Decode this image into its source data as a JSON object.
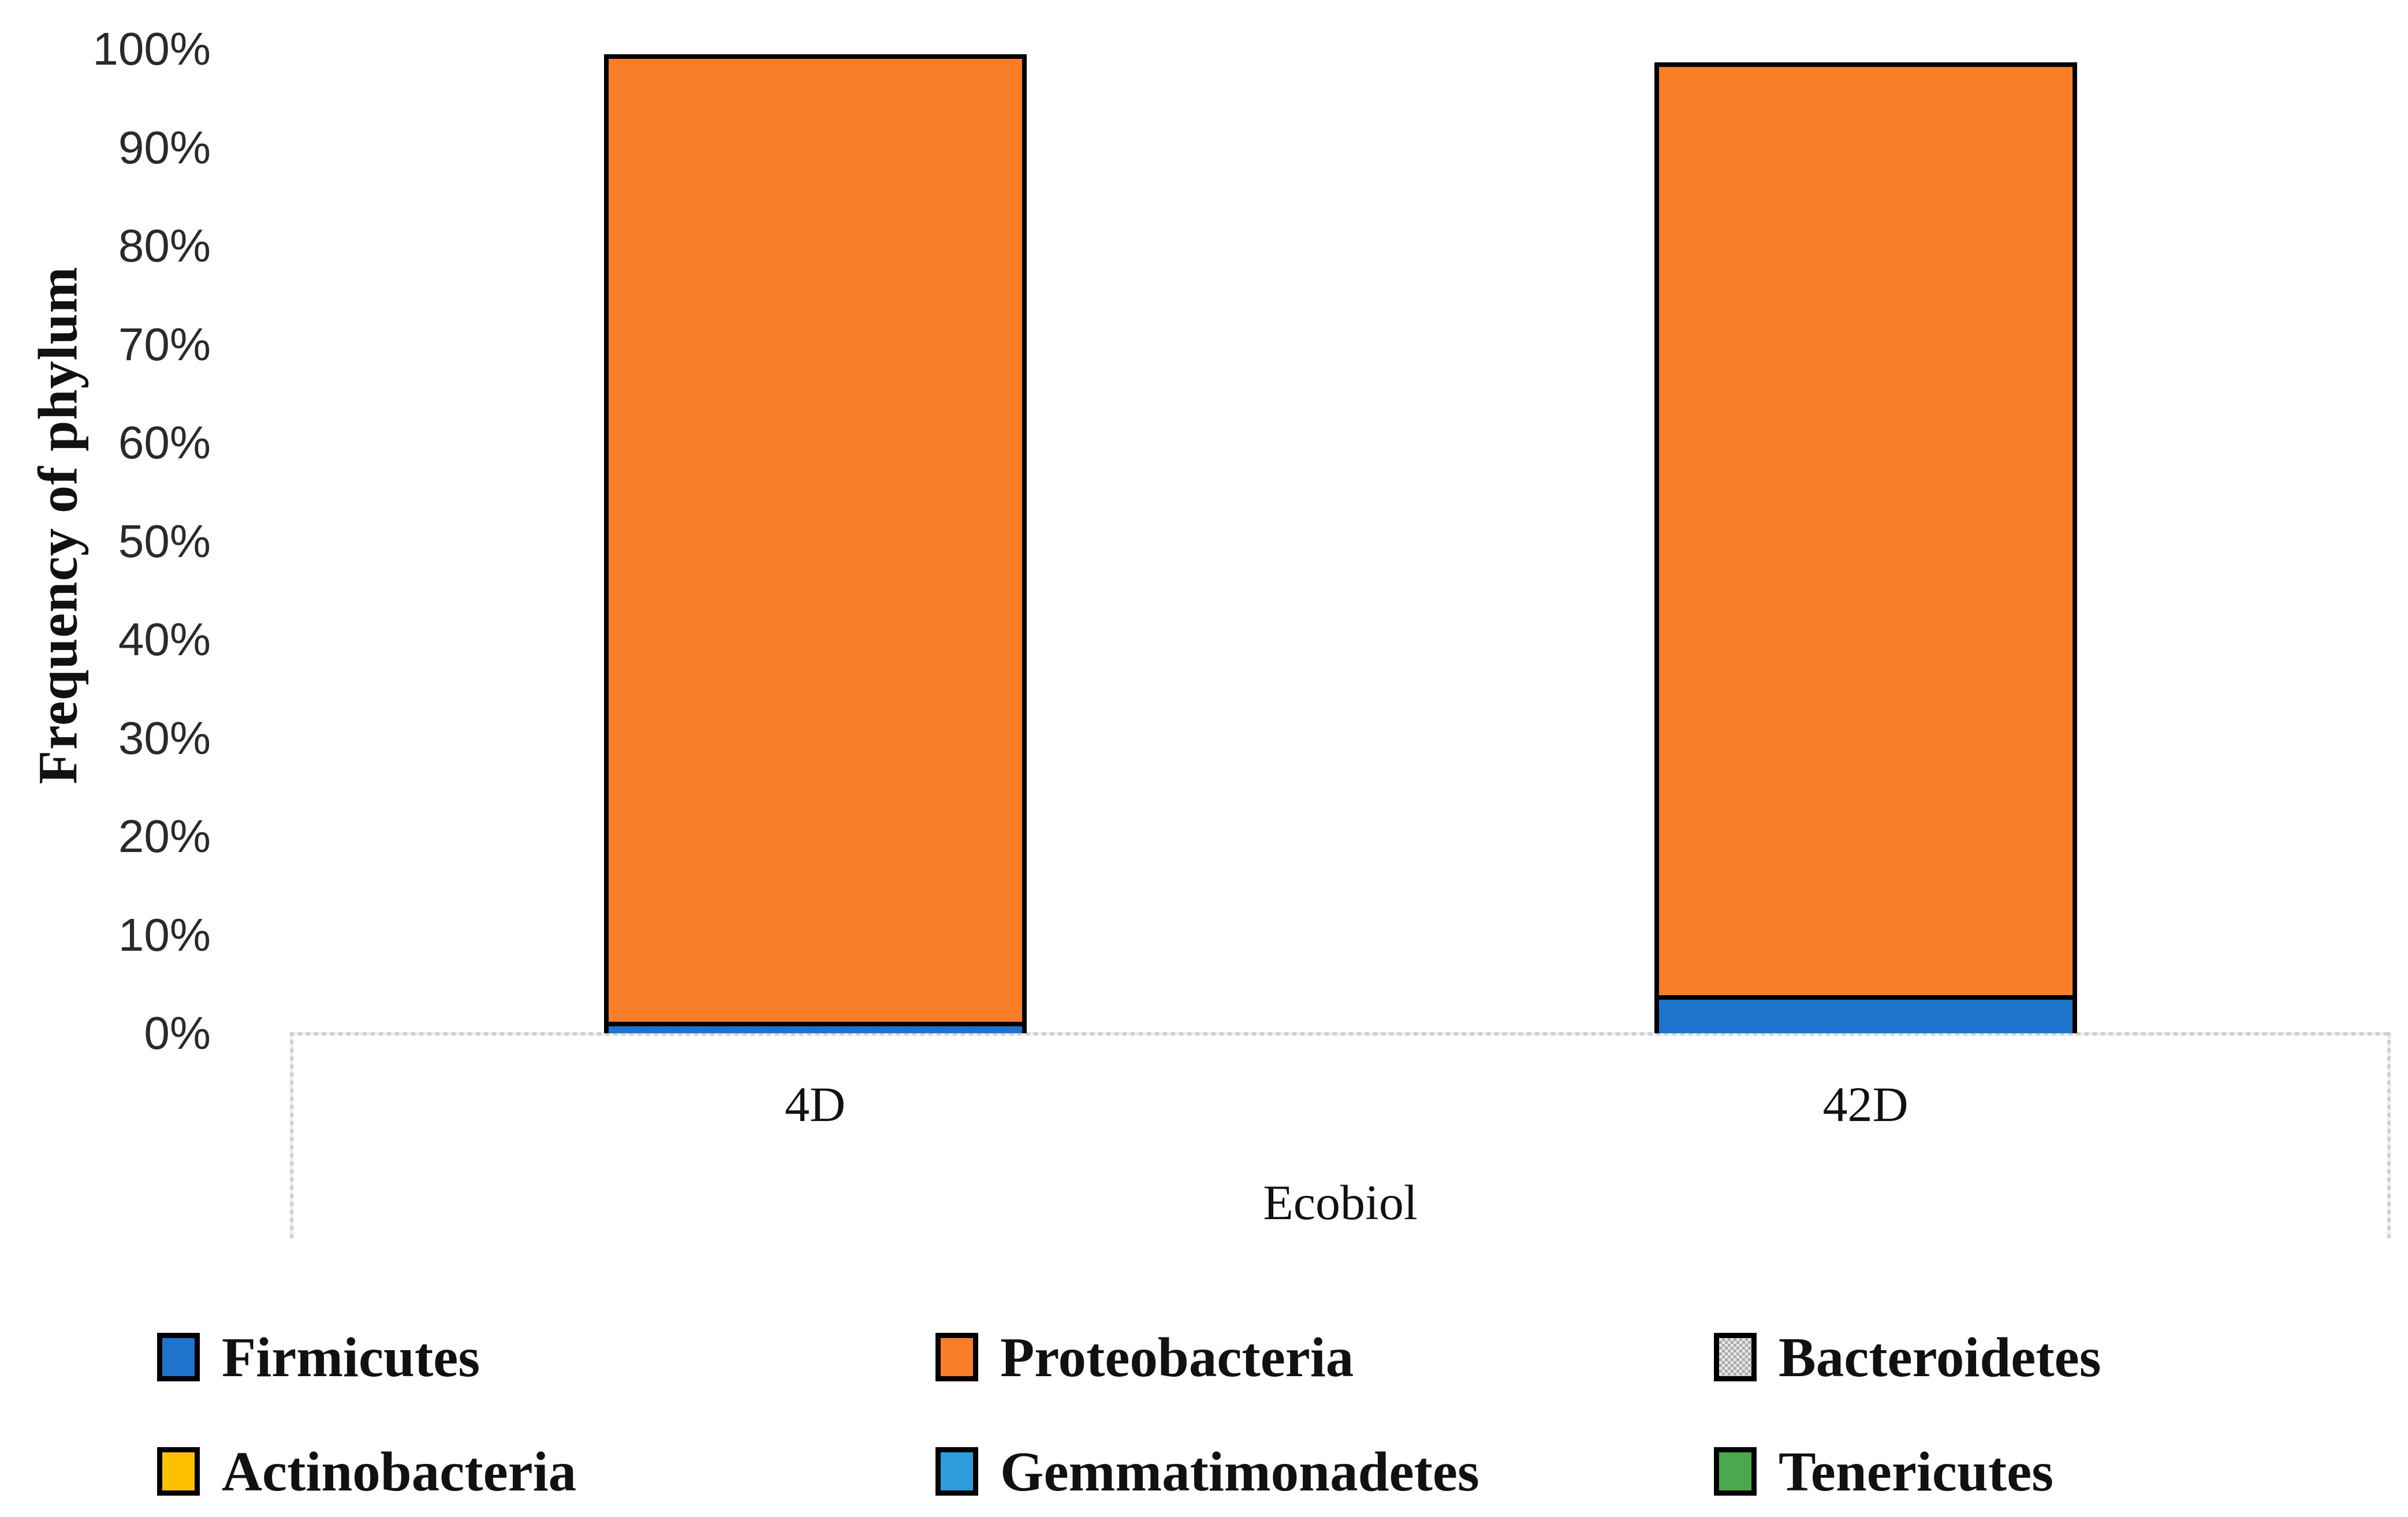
{
  "chart_data": {
    "type": "bar",
    "stacked": true,
    "y_axis_title": "Frequency of phylum",
    "x_group_label": "Ecobiol",
    "categories": [
      "4D",
      "42D"
    ],
    "series": [
      {
        "name": "Firmicutes",
        "color": "#1E73CC",
        "pattern": "solid",
        "values": [
          1.2,
          3.9
        ]
      },
      {
        "name": "Proteobacteria",
        "color": "#F97E27",
        "pattern": "solid",
        "values": [
          97.8,
          94.3
        ]
      },
      {
        "name": "Bacteroidetes",
        "color": "#C6C6C6",
        "pattern": "checker",
        "values": [
          0,
          0
        ]
      },
      {
        "name": "Actinobacteria",
        "color": "#FFC000",
        "pattern": "solid",
        "values": [
          0,
          0
        ]
      },
      {
        "name": "Gemmatimonadetes",
        "color": "#2F9CDB",
        "pattern": "solid",
        "values": [
          0,
          0
        ]
      },
      {
        "name": "Tenericutes",
        "color": "#4CA84F",
        "pattern": "solid",
        "values": [
          0,
          0
        ]
      }
    ],
    "stack_totals": [
      99.0,
      98.2
    ],
    "y_ticks": [
      "100%",
      "90%",
      "80%",
      "70%",
      "60%",
      "50%",
      "40%",
      "30%",
      "20%",
      "10%",
      "0%"
    ],
    "ylim": [
      0,
      100
    ],
    "gridlines": false,
    "bar_outline_color": "#000000",
    "axis_line_color": "#D6D6D6",
    "legend_position": "bottom",
    "legend_order": [
      "Firmicutes",
      "Proteobacteria",
      "Bacteroidetes",
      "Actinobacteria",
      "Gemmatimonadetes",
      "Tenericutes"
    ]
  }
}
